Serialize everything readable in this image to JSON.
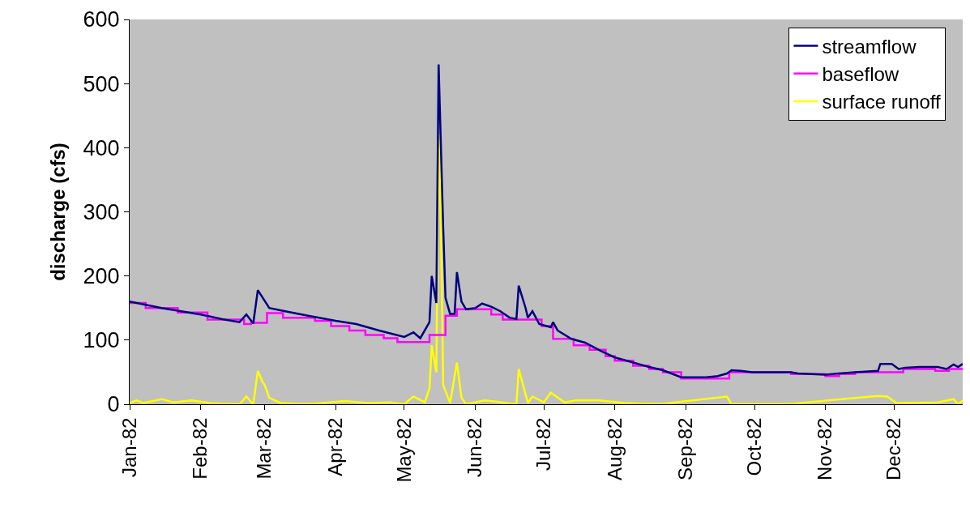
{
  "chart_data": {
    "type": "line",
    "ylabel": "discharge (cfs)",
    "xlim": [
      "1982-01-01",
      "1982-12-31"
    ],
    "ylim": [
      0,
      600
    ],
    "yticks": [
      0,
      100,
      200,
      300,
      400,
      500,
      600
    ],
    "xticks": [
      {
        "value": "1982-01-01",
        "label": "Jan-82"
      },
      {
        "value": "1982-02-01",
        "label": "Feb-82"
      },
      {
        "value": "1982-03-01",
        "label": "Mar-82"
      },
      {
        "value": "1982-04-01",
        "label": "Apr-82"
      },
      {
        "value": "1982-05-01",
        "label": "May-82"
      },
      {
        "value": "1982-06-01",
        "label": "Jun-82"
      },
      {
        "value": "1982-07-01",
        "label": "Jul-82"
      },
      {
        "value": "1982-08-01",
        "label": "Aug-82"
      },
      {
        "value": "1982-09-01",
        "label": "Sep-82"
      },
      {
        "value": "1982-10-01",
        "label": "Oct-82"
      },
      {
        "value": "1982-11-01",
        "label": "Nov-82"
      },
      {
        "value": "1982-12-01",
        "label": "Dec-82"
      }
    ],
    "legend": "top right",
    "grid": false,
    "series": [
      {
        "name": "streamflow",
        "color": "#000080",
        "x": [
          "1982-01-01",
          "1982-01-08",
          "1982-01-15",
          "1982-01-22",
          "1982-02-01",
          "1982-02-10",
          "1982-02-18",
          "1982-02-21",
          "1982-02-24",
          "1982-02-26",
          "1982-03-03",
          "1982-03-10",
          "1982-03-20",
          "1982-04-01",
          "1982-04-10",
          "1982-04-20",
          "1982-05-01",
          "1982-05-05",
          "1982-05-08",
          "1982-05-12",
          "1982-05-13",
          "1982-05-15",
          "1982-05-16",
          "1982-05-18",
          "1982-05-19",
          "1982-05-21",
          "1982-05-23",
          "1982-05-24",
          "1982-05-26",
          "1982-05-28",
          "1982-06-01",
          "1982-06-04",
          "1982-06-08",
          "1982-06-12",
          "1982-06-16",
          "1982-06-19",
          "1982-06-20",
          "1982-06-23",
          "1982-06-24",
          "1982-06-26",
          "1982-06-29",
          "1982-07-04",
          "1982-07-05",
          "1982-07-07",
          "1982-07-13",
          "1982-07-19",
          "1982-07-26",
          "1982-08-01",
          "1982-08-09",
          "1982-08-16",
          "1982-08-22",
          "1982-08-30",
          "1982-09-10",
          "1982-09-15",
          "1982-09-19",
          "1982-09-21",
          "1982-09-25",
          "1982-09-30",
          "1982-10-17",
          "1982-10-20",
          "1982-11-01",
          "1982-11-07",
          "1982-11-14",
          "1982-11-24",
          "1982-11-25",
          "1982-11-30",
          "1982-12-03",
          "1982-12-06",
          "1982-12-12",
          "1982-12-20",
          "1982-12-24",
          "1982-12-27",
          "1982-12-29",
          "1982-12-31"
        ],
        "values": [
          160,
          155,
          150,
          146,
          140,
          133,
          128,
          140,
          126,
          178,
          150,
          145,
          138,
          130,
          125,
          115,
          105,
          112,
          103,
          128,
          200,
          158,
          530,
          275,
          166,
          141,
          141,
          206,
          160,
          148,
          150,
          157,
          152,
          145,
          135,
          133,
          185,
          150,
          135,
          145,
          125,
          120,
          128,
          115,
          102,
          96,
          83,
          73,
          65,
          58,
          53,
          42,
          42,
          44,
          48,
          53,
          52,
          50,
          50,
          48,
          46,
          48,
          50,
          52,
          63,
          63,
          55,
          57,
          58,
          58,
          55,
          62,
          58,
          63
        ]
      },
      {
        "name": "baseflow",
        "color": "#ff00ff",
        "type": "step",
        "x": [
          "1982-01-01",
          "1982-01-08",
          "1982-01-22",
          "1982-02-04",
          "1982-02-20",
          "1982-02-23",
          "1982-03-02",
          "1982-03-09",
          "1982-03-23",
          "1982-03-30",
          "1982-04-07",
          "1982-04-14",
          "1982-04-22",
          "1982-04-28",
          "1982-05-12",
          "1982-05-19",
          "1982-05-24",
          "1982-06-08",
          "1982-06-13",
          "1982-06-30",
          "1982-07-05",
          "1982-07-14",
          "1982-07-21",
          "1982-07-28",
          "1982-08-01",
          "1982-08-09",
          "1982-08-16",
          "1982-08-22",
          "1982-08-30",
          "1982-09-20",
          "1982-10-17",
          "1982-11-01",
          "1982-11-07",
          "1982-11-14",
          "1982-12-05",
          "1982-12-19",
          "1982-12-25",
          "1982-12-31"
        ],
        "values": [
          158,
          150,
          143,
          132,
          125,
          127,
          142,
          135,
          130,
          122,
          115,
          108,
          103,
          97,
          108,
          138,
          148,
          140,
          132,
          122,
          102,
          92,
          85,
          75,
          68,
          60,
          55,
          50,
          40,
          50,
          47,
          44,
          47,
          50,
          55,
          52,
          55,
          57
        ]
      },
      {
        "name": "surface runoff",
        "color": "#ffff00",
        "x": [
          "1982-01-01",
          "1982-01-04",
          "1982-01-07",
          "1982-01-15",
          "1982-01-20",
          "1982-01-28",
          "1982-02-05",
          "1982-02-15",
          "1982-02-18",
          "1982-02-21",
          "1982-02-24",
          "1982-02-26",
          "1982-02-28",
          "1982-03-01",
          "1982-03-03",
          "1982-03-08",
          "1982-03-20",
          "1982-04-05",
          "1982-04-15",
          "1982-04-25",
          "1982-05-01",
          "1982-05-05",
          "1982-05-10",
          "1982-05-12",
          "1982-05-13",
          "1982-05-15",
          "1982-05-16",
          "1982-05-17",
          "1982-05-18",
          "1982-05-21",
          "1982-05-24",
          "1982-05-26",
          "1982-05-28",
          "1982-06-05",
          "1982-06-10",
          "1982-06-19",
          "1982-06-20",
          "1982-06-24",
          "1982-06-26",
          "1982-07-01",
          "1982-07-04",
          "1982-07-10",
          "1982-07-15",
          "1982-07-25",
          "1982-08-05",
          "1982-08-20",
          "1982-09-19",
          "1982-09-21",
          "1982-10-15",
          "1982-11-24",
          "1982-11-28",
          "1982-12-02",
          "1982-12-20",
          "1982-12-27",
          "1982-12-29",
          "1982-12-31"
        ],
        "values": [
          2,
          6,
          2,
          8,
          3,
          6,
          2,
          0,
          0,
          12,
          0,
          52,
          35,
          30,
          10,
          2,
          0,
          5,
          2,
          3,
          0,
          12,
          3,
          25,
          92,
          50,
          420,
          280,
          30,
          2,
          65,
          10,
          0,
          6,
          4,
          0,
          55,
          2,
          12,
          3,
          18,
          3,
          6,
          6,
          2,
          0,
          12,
          0,
          0,
          13,
          12,
          2,
          3,
          8,
          0,
          6
        ]
      }
    ]
  }
}
